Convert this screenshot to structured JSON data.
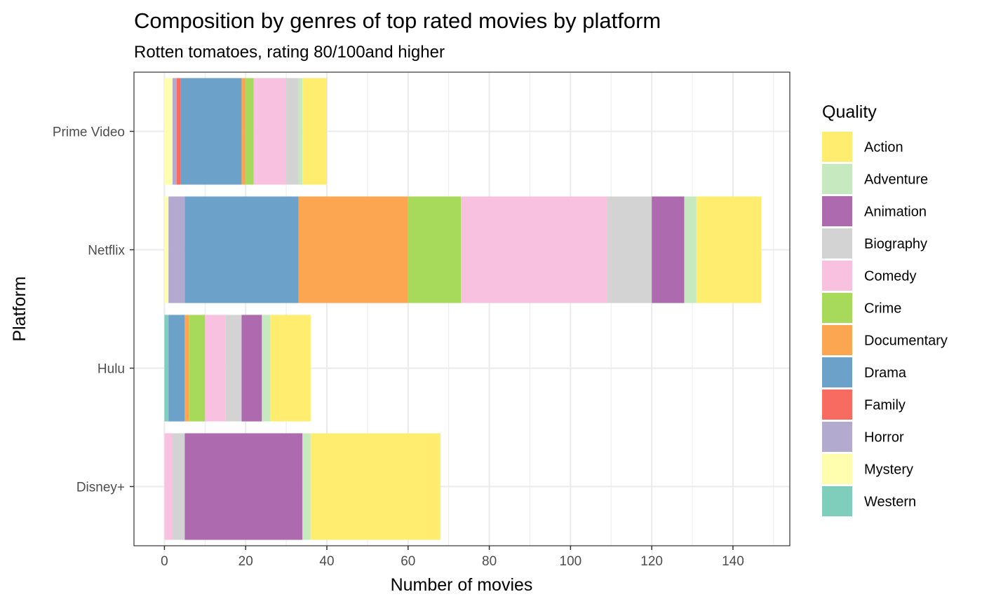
{
  "chart_data": {
    "type": "bar",
    "orientation": "horizontal",
    "stacked": true,
    "title": "Composition by genres of top rated movies by platform",
    "subtitle": "Rotten tomatoes, rating 80/100and higher",
    "xlabel": "Number of movies",
    "ylabel": "Platform",
    "xlim": [
      -7.5,
      154
    ],
    "x_ticks": [
      "0",
      "20",
      "40",
      "60",
      "80",
      "100",
      "120",
      "140"
    ],
    "grid": true,
    "legend": {
      "title": "Quality",
      "position": "right"
    },
    "categories": [
      "Prime Video",
      "Netflix",
      "Hulu",
      "Disney+"
    ],
    "series": [
      {
        "name": "Action",
        "color": "#FFED6F",
        "values": [
          6,
          16,
          10,
          32
        ]
      },
      {
        "name": "Adventure",
        "color": "#C7E9C0",
        "values": [
          1,
          3,
          2,
          2
        ]
      },
      {
        "name": "Animation",
        "color": "#AE6AAF",
        "values": [
          0,
          8,
          5,
          29
        ]
      },
      {
        "name": "Biography",
        "color": "#D3D3D3",
        "values": [
          3,
          11,
          4,
          3
        ]
      },
      {
        "name": "Comedy",
        "color": "#F8C1DF",
        "values": [
          8,
          36,
          5,
          2
        ]
      },
      {
        "name": "Crime",
        "color": "#A7DA5A",
        "values": [
          2,
          13,
          4,
          0
        ]
      },
      {
        "name": "Documentary",
        "color": "#FCA651",
        "values": [
          1,
          27,
          1,
          0
        ]
      },
      {
        "name": "Drama",
        "color": "#6CA2C9",
        "values": [
          15,
          28,
          4,
          0
        ]
      },
      {
        "name": "Family",
        "color": "#F76B61",
        "values": [
          1,
          0,
          0,
          0
        ]
      },
      {
        "name": "Horror",
        "color": "#B2AACF",
        "values": [
          1,
          4,
          0,
          0
        ]
      },
      {
        "name": "Mystery",
        "color": "#FEFEAE",
        "values": [
          2,
          1,
          0,
          0
        ]
      },
      {
        "name": "Western",
        "color": "#7FCDBB",
        "values": [
          0,
          0,
          1,
          0
        ]
      }
    ]
  }
}
